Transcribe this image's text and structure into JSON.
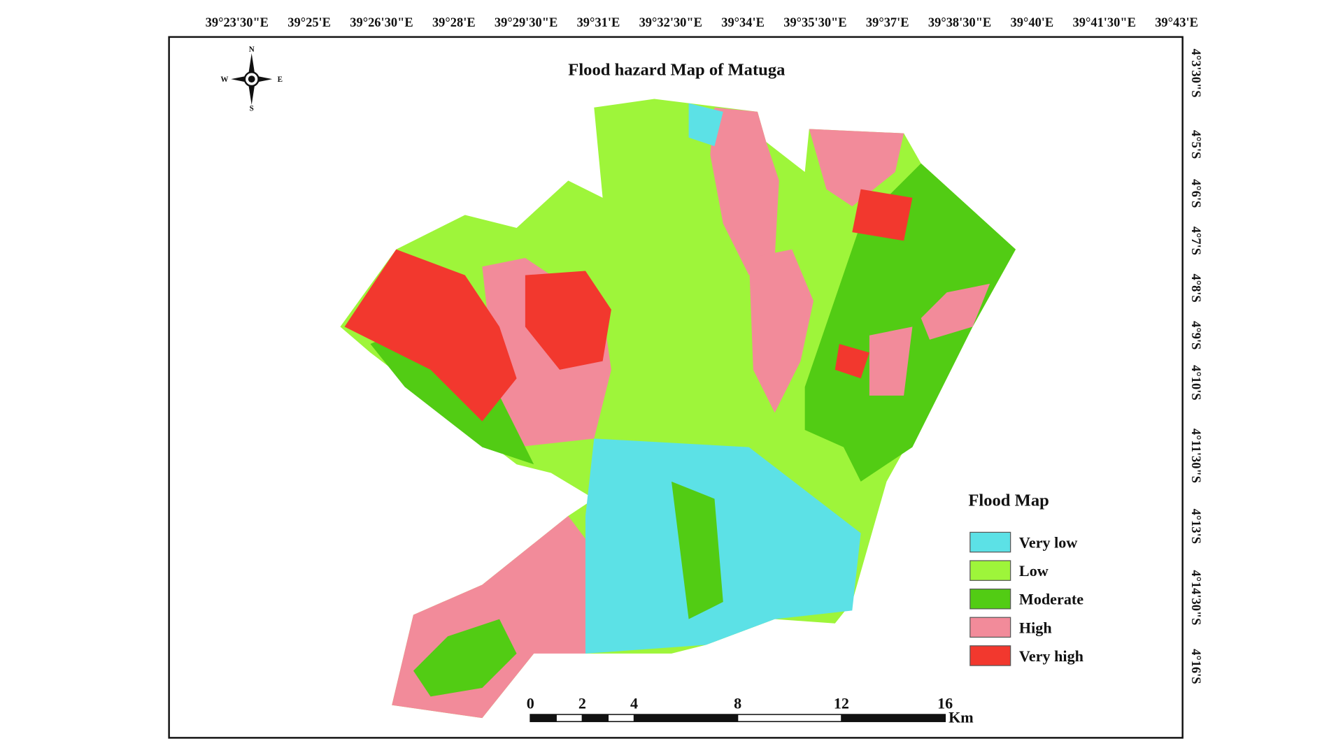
{
  "title": "Flood hazard Map of  Matuga",
  "compass": {
    "north": "N",
    "south": "S",
    "east": "E",
    "west": "W"
  },
  "longitude_labels": [
    "39°23'30\"E",
    "39°25'E",
    "39°26'30\"E",
    "39°28'E",
    "39°29'30\"E",
    "39°31'E",
    "39°32'30\"E",
    "39°34'E",
    "39°35'30\"E",
    "39°37'E",
    "39°38'30\"E",
    "39°40'E",
    "39°41'30\"E",
    "39°43'E"
  ],
  "latitude_labels": [
    "4°3'30\"S",
    "4°5'S",
    "4°6'S",
    "4°7'S",
    "4°8'S",
    "4°9'S",
    "4°10'S",
    "4°11'30\"S",
    "4°13'S",
    "4°14'30\"S",
    "4°16'S"
  ],
  "legend": {
    "title": "Flood Map",
    "items": [
      {
        "label": "Very low",
        "color": "#5ce1e6"
      },
      {
        "label": "Low",
        "color": "#9ef53a"
      },
      {
        "label": "Moderate",
        "color": "#52cc14"
      },
      {
        "label": "High",
        "color": "#f28b9a"
      },
      {
        "label": "Very high",
        "color": "#f2382e"
      }
    ]
  },
  "scale_bar": {
    "ticks": [
      0,
      2,
      4,
      8,
      12,
      16
    ],
    "unit": "Km"
  }
}
